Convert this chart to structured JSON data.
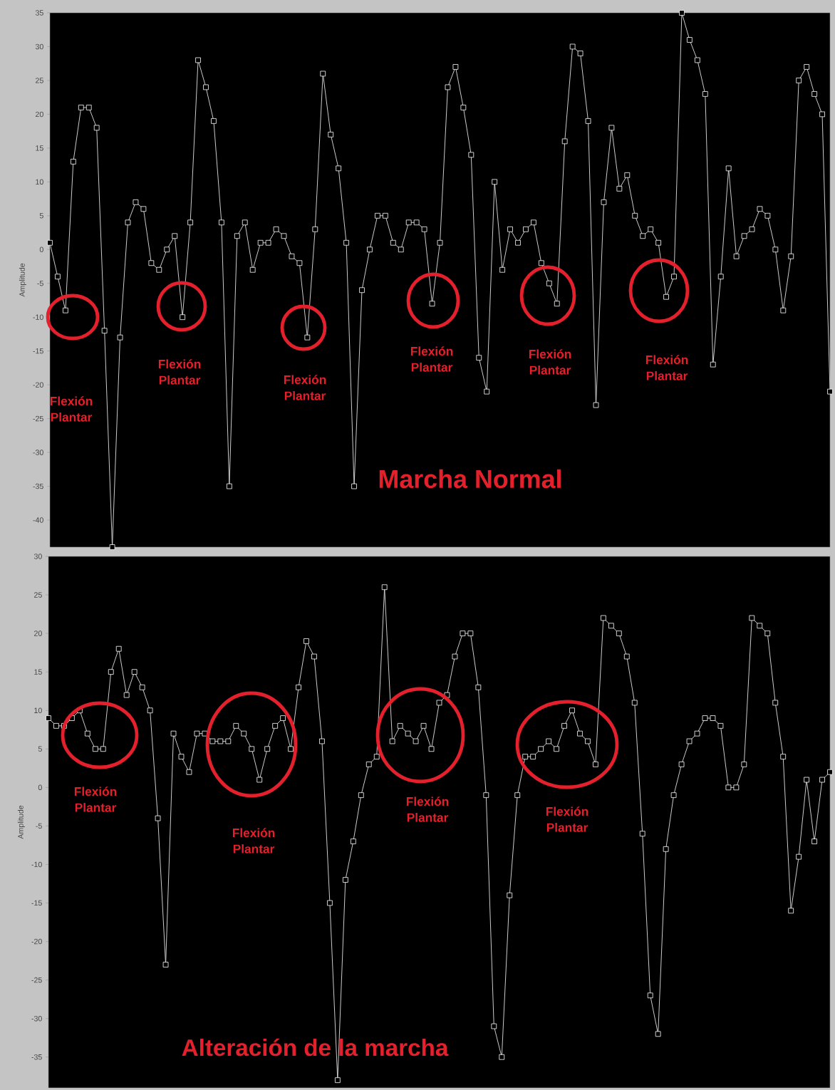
{
  "chart_data": [
    {
      "type": "line",
      "title": "Marcha Normal",
      "ylabel": "Amplitude",
      "categories": [
        null,
        null,
        null,
        null,
        null,
        null,
        null,
        null,
        null,
        null,
        null,
        null,
        null,
        null,
        null,
        null,
        null,
        null,
        null,
        null,
        null,
        null,
        null,
        null,
        null,
        null,
        null,
        null,
        null,
        null,
        null,
        null,
        null,
        null,
        null,
        null,
        null,
        null,
        null,
        null,
        null,
        null,
        null,
        null,
        null,
        null,
        null,
        null,
        null,
        null,
        null,
        null,
        null,
        null,
        null,
        null,
        null,
        null,
        null,
        null,
        null,
        null,
        null,
        null,
        null,
        null,
        null,
        null,
        null,
        null,
        null,
        null,
        null,
        null,
        null,
        null,
        null,
        null,
        null,
        null,
        null,
        null,
        null,
        null,
        null,
        null,
        null,
        null,
        null,
        null,
        null,
        null,
        null,
        null,
        null,
        null,
        null,
        null,
        null,
        null,
        null
      ],
      "series": [
        {
          "color": "#d9d9d9",
          "values": [
            1,
            -4,
            -9,
            13,
            21,
            21,
            18,
            -12,
            -44,
            -13,
            4,
            7,
            6,
            -2,
            -3,
            0,
            2,
            -10,
            4,
            28,
            24,
            19,
            4,
            -35,
            2,
            4,
            -3,
            1,
            1,
            3,
            2,
            -1,
            -2,
            -13,
            3,
            26,
            17,
            12,
            1,
            -35,
            -6,
            0,
            5,
            5,
            1,
            0,
            4,
            4,
            3,
            -8,
            1,
            24,
            27,
            21,
            14,
            -16,
            -21,
            10,
            -3,
            3,
            1,
            3,
            4,
            -2,
            -5,
            -8,
            16,
            30,
            29,
            19,
            -23,
            7,
            18,
            9,
            11,
            5,
            2,
            3,
            1,
            -7,
            -4,
            35,
            31,
            28,
            23,
            -17,
            -4,
            12,
            -1,
            2,
            3,
            6,
            5,
            0,
            -9,
            -1,
            25,
            27,
            23,
            20,
            -21
          ]
        }
      ],
      "ylim": [
        -44,
        35
      ],
      "yticks": [
        -40,
        -35,
        -30,
        -25,
        -20,
        -15,
        -10,
        -5,
        0,
        5,
        10,
        15,
        20,
        25,
        30,
        35
      ],
      "tick_labels": "y",
      "marker": "square",
      "annotations": [
        "Flexión Plantar",
        "Flexión Plantar",
        "Flexión Plantar",
        "Flexión Plantar",
        "Flexión Plantar",
        "Flexión Plantar"
      ]
    },
    {
      "type": "line",
      "title": "Alteración de la marcha",
      "ylabel": "Amplitude",
      "categories": [
        null,
        null,
        null,
        null,
        null,
        null,
        null,
        null,
        null,
        null,
        null,
        null,
        null,
        null,
        null,
        null,
        null,
        null,
        null,
        null,
        null,
        null,
        null,
        null,
        null,
        null,
        null,
        null,
        null,
        null,
        null,
        null,
        null,
        null,
        null,
        null,
        null,
        null,
        null,
        null,
        null,
        null,
        null,
        null,
        null,
        null,
        null,
        null,
        null,
        null,
        null,
        null,
        null,
        null,
        null,
        null,
        null,
        null,
        null,
        null,
        null,
        null,
        null,
        null,
        null,
        null,
        null,
        null,
        null,
        null,
        null,
        null,
        null,
        null,
        null,
        null,
        null,
        null,
        null,
        null,
        null,
        null,
        null,
        null,
        null,
        null,
        null,
        null,
        null,
        null,
        null,
        null,
        null,
        null,
        null,
        null,
        null,
        null,
        null,
        null,
        null
      ],
      "series": [
        {
          "color": "#d9d9d9",
          "values": [
            9,
            8,
            8,
            9,
            10,
            7,
            5,
            5,
            15,
            18,
            12,
            15,
            13,
            10,
            -4,
            -23,
            7,
            4,
            2,
            7,
            7,
            6,
            6,
            6,
            8,
            7,
            5,
            1,
            5,
            8,
            9,
            5,
            13,
            19,
            17,
            6,
            -15,
            -38,
            -12,
            -7,
            -1,
            3,
            4,
            26,
            6,
            8,
            7,
            6,
            8,
            5,
            11,
            12,
            17,
            20,
            20,
            13,
            -1,
            -31,
            -35,
            -14,
            -1,
            4,
            4,
            5,
            6,
            5,
            8,
            10,
            7,
            6,
            3,
            22,
            21,
            20,
            17,
            11,
            -6,
            -27,
            -32,
            -8,
            -1,
            3,
            6,
            7,
            9,
            9,
            8,
            0,
            0,
            3,
            22,
            21,
            20,
            11,
            4,
            -16,
            -9,
            1,
            -7,
            1,
            2
          ]
        }
      ],
      "ylim": [
        -39,
        30
      ],
      "yticks": [
        -35,
        -30,
        -25,
        -20,
        -15,
        -10,
        -5,
        0,
        5,
        10,
        15,
        20,
        25,
        30
      ],
      "tick_labels": "y",
      "marker": "square",
      "annotations": [
        "Flexión Plantar",
        "Flexión Plantar",
        "Flexión Plantar",
        "Flexión Plantar"
      ]
    }
  ]
}
